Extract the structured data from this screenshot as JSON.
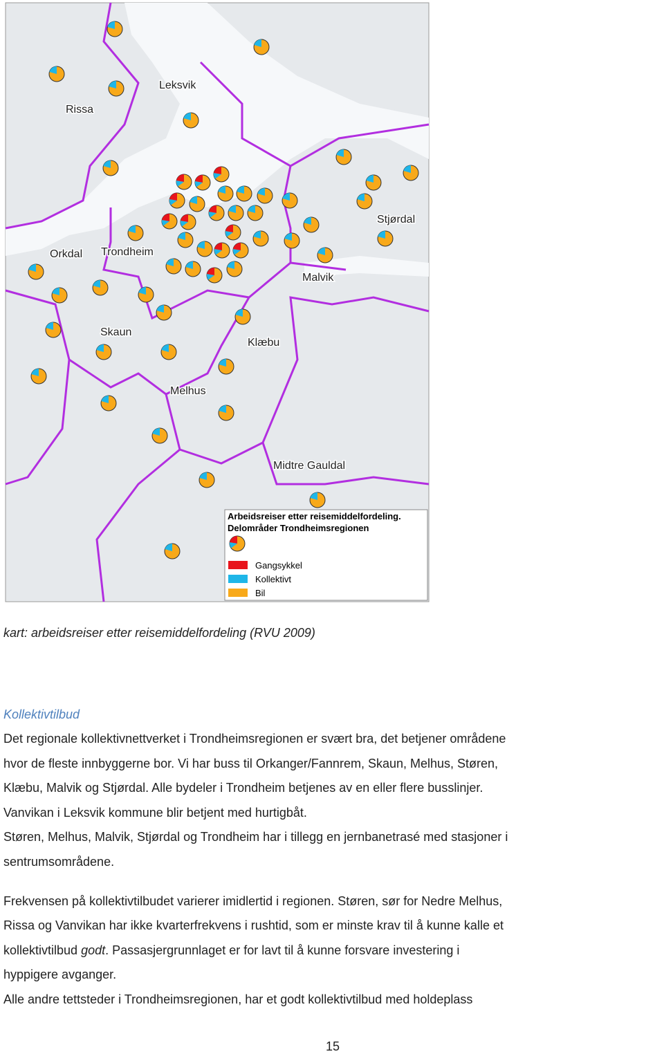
{
  "map": {
    "labels": [
      "Leksvik",
      "Rissa",
      "Orkdal",
      "Trondheim",
      "Malvik",
      "Stjørdal",
      "Skaun",
      "Klæbu",
      "Melhus",
      "Midtre Gauldal"
    ],
    "legend": {
      "title": [
        "Arbeidsreiser etter reisemiddelfordeling.",
        "Delområder Trondheimsregionen"
      ],
      "entries": [
        "Gangsykkel",
        "Kollektivt",
        "Bil"
      ]
    }
  },
  "caption": "kart: arbeidsreiser etter reisemiddelfordeling (RVU 2009)",
  "heading": "Kollektivtilbud",
  "paragraphs": [
    [
      "Det regionale kollektivnettverket i Trondheimsregionen er svært bra, det betjener områdene",
      "hvor de fleste innbyggerne bor. Vi har buss til Orkanger/Fannrem, Skaun, Melhus, Støren,",
      "Klæbu, Malvik og Stjørdal. Alle bydeler i Trondheim betjenes av en eller flere busslinjer.",
      "Vanvikan i Leksvik kommune blir betjent med hurtigbåt.",
      "Støren, Melhus, Malvik, Stjørdal og Trondheim har i tillegg en jernbanetrasé med stasjoner i",
      "sentrumsområdene."
    ],
    [
      "Frekvensen på kollektivtilbudet varierer imidlertid i regionen. Støren, sør for Nedre Melhus,",
      "Rissa og Vanvikan har ikke kvarterfrekvens i rushtid, som er minste krav til å kunne kalle et",
      [
        "kollektivtilbud ",
        "godt",
        ". Passasjergrunnlaget er for lavt til å kunne forsvare investering i"
      ],
      "hyppigere avganger.",
      "Alle andre tettsteder i Trondheimsregionen, har et godt kollektivtilbud med holdeplass"
    ]
  ],
  "page_number": "15"
}
